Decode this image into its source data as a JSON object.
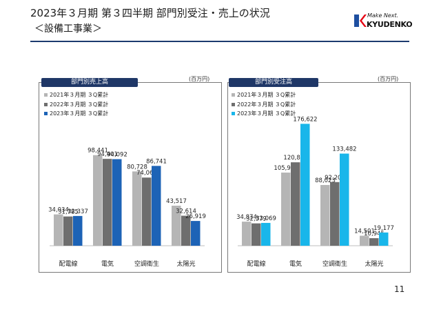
{
  "header": {
    "title": "2023年３月期 第３四半期 部門別受注・売上の状況",
    "subtitle": "＜設備工事業＞"
  },
  "logo": {
    "tagline": "Make Next.",
    "name": "KYUDENKO",
    "colors": [
      "#e60012",
      "#1e4fa0"
    ]
  },
  "colors": {
    "rule": "#1c3a6e",
    "header_bg": "#1f3767",
    "series_2021": "#b5b5b5",
    "series_2022": "#6e6e6e",
    "series_2023_left": "#1d63b6",
    "series_2023_right": "#19b6ea"
  },
  "page_number": "11",
  "chart_data": [
    {
      "type": "bar",
      "title": "部門別売上高",
      "unit": "(百万円)",
      "categories": [
        "配電線",
        "電気",
        "空調衛生",
        "太陽光"
      ],
      "series": [
        {
          "name": "2021年３月期 ３Q累計",
          "values": [
            34034,
            98441,
            80728,
            43517
          ],
          "labels": [
            "34,034",
            "98,441",
            "80,728",
            "43,517"
          ],
          "color": "#b5b5b5"
        },
        {
          "name": "2022年３月期 ３Q累計",
          "values": [
            31785,
            94401,
            74063,
            32614
          ],
          "labels": [
            "31,785",
            "94,401",
            "74,063",
            "32,614"
          ],
          "color": "#6e6e6e"
        },
        {
          "name": "2023年３月期 ３Q累計",
          "values": [
            32337,
            94092,
            86741,
            26919
          ],
          "labels": [
            "32,337",
            "94,092",
            "86,741",
            "26,919"
          ],
          "color": "#1d63b6"
        }
      ],
      "ylim": [
        0,
        150000
      ],
      "grid": false,
      "legend": "top-left"
    },
    {
      "type": "bar",
      "title": "部門別受注高",
      "unit": "(百万円)",
      "categories": [
        "配電線",
        "電気",
        "空調衛生",
        "太陽光"
      ],
      "series": [
        {
          "name": "2021年３月期 ３Q累計",
          "values": [
            34874,
            105963,
            88023,
            14501
          ],
          "labels": [
            "34,874",
            "105,963",
            "88,023",
            "14,501"
          ],
          "color": "#b5b5b5"
        },
        {
          "name": "2022年３月期 ３Q累計",
          "values": [
            32379,
            120880,
            92206,
            10945
          ],
          "labels": [
            "32,379",
            "120,880",
            "92,206",
            "10,945"
          ],
          "color": "#6e6e6e"
        },
        {
          "name": "2023年３月期 ３Q累計",
          "values": [
            33069,
            176622,
            133482,
            19177
          ],
          "labels": [
            "33,069",
            "176,622",
            "133,482",
            "19,177"
          ],
          "color": "#19b6ea"
        }
      ],
      "ylim": [
        0,
        200000
      ],
      "grid": false,
      "legend": "top-left"
    }
  ]
}
